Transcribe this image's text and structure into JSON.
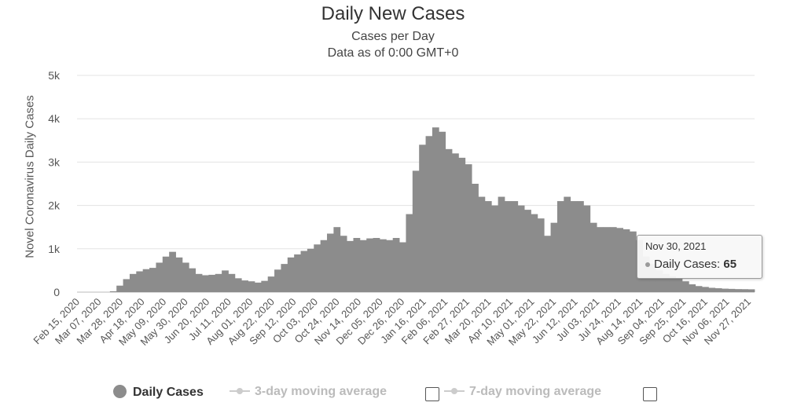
{
  "chart_data": {
    "type": "bar",
    "title": "Daily New Cases",
    "subtitle": "Cases per Day",
    "subtitle2": "Data as of 0:00 GMT+0",
    "ylabel": "Novel Coronavirus Daily Cases",
    "ylim": [
      0,
      5000
    ],
    "yticks": [
      0,
      1000,
      2000,
      3000,
      4000,
      5000
    ],
    "ytick_labels": [
      "0",
      "1k",
      "2k",
      "3k",
      "4k",
      "5k"
    ],
    "xlabels": [
      "Feb 15, 2020",
      "Mar 07, 2020",
      "Mar 28, 2020",
      "Apr 18, 2020",
      "May 09, 2020",
      "May 30, 2020",
      "Jun 20, 2020",
      "Jul 11, 2020",
      "Aug 01, 2020",
      "Aug 22, 2020",
      "Sep 12, 2020",
      "Oct 03, 2020",
      "Oct 24, 2020",
      "Nov 14, 2020",
      "Dec 05, 2020",
      "Dec 26, 2020",
      "Jan 16, 2021",
      "Feb 06, 2021",
      "Feb 27, 2021",
      "Mar 20, 2021",
      "Apr 10, 2021",
      "May 01, 2021",
      "May 22, 2021",
      "Jun 12, 2021",
      "Jul 03, 2021",
      "Jul 24, 2021",
      "Aug 14, 2021",
      "Sep 04, 2021",
      "Sep 25, 2021",
      "Oct 16, 2021",
      "Nov 06, 2021",
      "Nov 27, 2021"
    ],
    "series": [
      {
        "name": "Daily Cases",
        "color": "#8c8c8c",
        "resolution_days": 7,
        "start_week": "Feb 15, 2020",
        "values": [
          0,
          0,
          0,
          0,
          0,
          20,
          150,
          300,
          420,
          480,
          530,
          560,
          680,
          820,
          930,
          800,
          680,
          550,
          420,
          390,
          400,
          420,
          500,
          420,
          320,
          270,
          250,
          220,
          260,
          360,
          520,
          650,
          800,
          870,
          950,
          1000,
          1100,
          1200,
          1350,
          1500,
          1300,
          1180,
          1250,
          1200,
          1240,
          1250,
          1220,
          1200,
          1250,
          1150,
          1800,
          2800,
          3400,
          3600,
          3800,
          3700,
          3300,
          3200,
          3100,
          2950,
          2500,
          2200,
          2100,
          2000,
          2200,
          2100,
          2100,
          2000,
          1900,
          1800,
          1700,
          1300,
          1600,
          2100,
          2200,
          2100,
          2100,
          2000,
          1600,
          1500,
          1500,
          1500,
          1480,
          1450,
          1400,
          1200,
          820,
          650,
          500,
          420,
          370,
          320,
          250,
          180,
          140,
          120,
          100,
          90,
          80,
          75,
          70,
          68,
          65
        ]
      },
      {
        "name": "3-day moving average",
        "color": "#cccccc",
        "visible": false
      },
      {
        "name": "7-day moving average",
        "color": "#cccccc",
        "visible": false
      }
    ],
    "grid": true,
    "legend_position": "bottom"
  },
  "tooltip": {
    "date": "Nov 30, 2021",
    "label": "Daily Cases:",
    "value": "65"
  },
  "legend": {
    "items": [
      {
        "label": "Daily Cases",
        "enabled": true
      },
      {
        "label": "3-day moving average",
        "enabled": false
      },
      {
        "label": "7-day moving average",
        "enabled": false
      }
    ]
  }
}
